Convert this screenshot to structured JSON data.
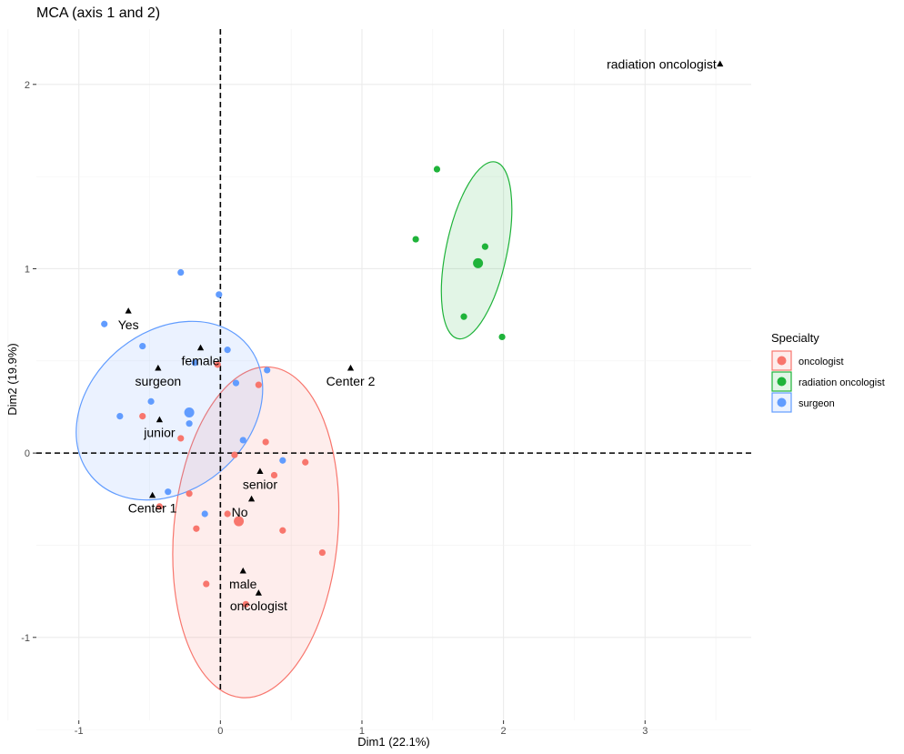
{
  "chart_data": {
    "type": "scatter",
    "title": "MCA (axis 1 and 2)",
    "xlabel": "Dim1 (22.1%)",
    "ylabel": "Dim2 (19.9%)",
    "xlim": [
      -1.3,
      3.75
    ],
    "ylim": [
      -1.45,
      2.3
    ],
    "xticks": [
      -1,
      0,
      1,
      2,
      3
    ],
    "yticks": [
      -1,
      0,
      1,
      2
    ],
    "x_tick_labels": [
      "-1",
      "0",
      "1",
      "2",
      "3"
    ],
    "y_tick_labels": [
      "-1",
      "0",
      "1",
      "2"
    ],
    "grid": true,
    "reference_lines": {
      "x": 0,
      "y": 0,
      "style": "dashed"
    },
    "legend": {
      "title": "Specialty",
      "position": "right",
      "items": [
        {
          "label": "oncologist",
          "color": "#f8766d"
        },
        {
          "label": "radiation oncologist",
          "color": "#1fb33a"
        },
        {
          "label": "surgeon",
          "color": "#619cff"
        }
      ]
    },
    "groups": [
      {
        "name": "oncologist",
        "color": "#f8766d",
        "centroid": [
          0.13,
          -0.37
        ],
        "ellipse": {
          "center": [
            0.25,
            -0.43
          ],
          "rx": 0.58,
          "ry": 0.9,
          "rotation_deg": 5
        },
        "points": [
          [
            -0.55,
            0.2
          ],
          [
            -0.28,
            0.08
          ],
          [
            -0.02,
            0.48
          ],
          [
            0.27,
            0.37
          ],
          [
            0.32,
            0.06
          ],
          [
            0.1,
            -0.01
          ],
          [
            0.38,
            -0.12
          ],
          [
            0.6,
            -0.05
          ],
          [
            -0.22,
            -0.22
          ],
          [
            -0.43,
            -0.29
          ],
          [
            -0.17,
            -0.41
          ],
          [
            0.05,
            -0.33
          ],
          [
            0.44,
            -0.42
          ],
          [
            0.72,
            -0.54
          ],
          [
            -0.1,
            -0.71
          ],
          [
            0.18,
            -0.82
          ]
        ]
      },
      {
        "name": "radiation oncologist",
        "color": "#1fb33a",
        "centroid": [
          1.82,
          1.03
        ],
        "ellipse": {
          "center": [
            1.81,
            1.1
          ],
          "rx": 0.215,
          "ry": 0.49,
          "rotation_deg": 12
        },
        "points": [
          [
            1.53,
            1.54
          ],
          [
            1.38,
            1.16
          ],
          [
            1.87,
            1.12
          ],
          [
            1.72,
            0.74
          ],
          [
            1.99,
            0.63
          ]
        ]
      },
      {
        "name": "surgeon",
        "color": "#619cff",
        "centroid": [
          -0.22,
          0.22
        ],
        "ellipse": {
          "center": [
            -0.36,
            0.23
          ],
          "rx": 0.72,
          "ry": 0.43,
          "rotation_deg": -40
        },
        "points": [
          [
            -0.82,
            0.7
          ],
          [
            -0.28,
            0.98
          ],
          [
            -0.01,
            0.86
          ],
          [
            -0.55,
            0.58
          ],
          [
            -0.18,
            0.49
          ],
          [
            0.05,
            0.56
          ],
          [
            0.33,
            0.45
          ],
          [
            0.11,
            0.38
          ],
          [
            -0.49,
            0.28
          ],
          [
            -0.71,
            0.2
          ],
          [
            -0.22,
            0.16
          ],
          [
            0.16,
            0.07
          ],
          [
            0.44,
            -0.04
          ],
          [
            -0.37,
            -0.21
          ],
          [
            -0.11,
            -0.33
          ]
        ]
      }
    ],
    "categories": [
      {
        "label": "radiation oncologist",
        "x": 3.53,
        "y": 2.11,
        "anchor": "end"
      },
      {
        "label": "Yes",
        "x": -0.65,
        "y": 0.77,
        "anchor": "end"
      },
      {
        "label": "female",
        "x": -0.14,
        "y": 0.57,
        "anchor": "middle"
      },
      {
        "label": "surgeon",
        "x": -0.44,
        "y": 0.46,
        "anchor": "middle"
      },
      {
        "label": "Center 2",
        "x": 0.92,
        "y": 0.46,
        "anchor": "middle"
      },
      {
        "label": "junior",
        "x": -0.43,
        "y": 0.18,
        "anchor": "middle"
      },
      {
        "label": "senior",
        "x": 0.28,
        "y": -0.1,
        "anchor": "middle"
      },
      {
        "label": "Center 1",
        "x": -0.48,
        "y": -0.23,
        "anchor": "middle"
      },
      {
        "label": "No",
        "x": 0.22,
        "y": -0.25,
        "anchor": "end"
      },
      {
        "label": "male",
        "x": 0.16,
        "y": -0.64,
        "anchor": "middle"
      },
      {
        "label": "oncologist",
        "x": 0.27,
        "y": -0.76,
        "anchor": "middle"
      }
    ]
  }
}
